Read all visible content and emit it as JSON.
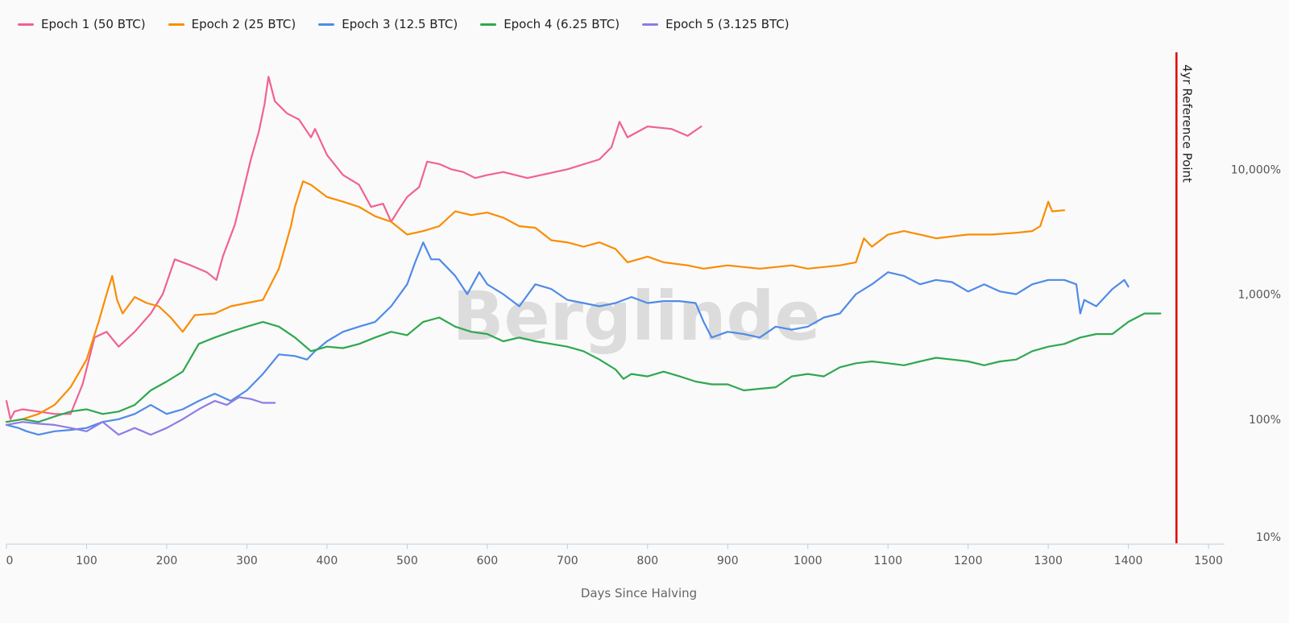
{
  "watermark": "Berglinde",
  "chart_data": {
    "type": "line",
    "xlabel": "Days Since Halving",
    "ylabel": "",
    "yscale": "log",
    "xlim": [
      0,
      1520
    ],
    "ylim": [
      10,
      100000
    ],
    "x_ticks": [
      0,
      100,
      200,
      300,
      400,
      500,
      600,
      700,
      800,
      900,
      1000,
      1100,
      1200,
      1300,
      1400,
      1500
    ],
    "x_tick_labels": [
      "0",
      "100",
      "200",
      "300",
      "400",
      "500",
      "600",
      "700",
      "800",
      "900",
      "1000",
      "1100",
      "1200",
      "1300",
      "1400",
      "1500"
    ],
    "y_ticks": [
      10,
      100,
      1000,
      10000
    ],
    "y_tick_labels": [
      "10%",
      "100%",
      "1,000%",
      "10,000%"
    ],
    "y_axis_side": "right",
    "grid": false,
    "legend_position": "top-left",
    "reference_line": {
      "x": 1460,
      "label": "4yr Reference Point",
      "color": "#e00000"
    },
    "series": [
      {
        "name": "Epoch 1 (50 BTC)",
        "color": "#f06292",
        "x": [
          0,
          5,
          10,
          20,
          40,
          60,
          80,
          95,
          110,
          125,
          140,
          160,
          180,
          195,
          210,
          230,
          250,
          262,
          270,
          285,
          295,
          305,
          315,
          322,
          327,
          335,
          350,
          365,
          380,
          385,
          400,
          420,
          440,
          455,
          470,
          480,
          490,
          500,
          515,
          525,
          540,
          555,
          570,
          585,
          600,
          620,
          650,
          700,
          740,
          755,
          765,
          775,
          800,
          830,
          850,
          867
        ],
        "y": [
          140,
          100,
          115,
          120,
          115,
          110,
          110,
          190,
          450,
          500,
          380,
          500,
          700,
          1000,
          1900,
          1700,
          1500,
          1300,
          2000,
          3600,
          6500,
          12000,
          20000,
          33000,
          55000,
          35000,
          28000,
          25000,
          18000,
          21000,
          13000,
          9000,
          7500,
          5000,
          5300,
          3800,
          4800,
          6000,
          7200,
          11500,
          11000,
          10000,
          9500,
          8500,
          9000,
          9500,
          8500,
          10000,
          12000,
          15000,
          24000,
          18000,
          22000,
          21000,
          18500,
          22000
        ]
      },
      {
        "name": "Epoch 2 (25 BTC)",
        "color": "#fb8c00",
        "x": [
          0,
          20,
          40,
          60,
          80,
          100,
          115,
          125,
          132,
          138,
          145,
          160,
          175,
          190,
          205,
          220,
          235,
          260,
          280,
          300,
          320,
          340,
          355,
          360,
          370,
          380,
          400,
          420,
          440,
          460,
          480,
          500,
          520,
          540,
          560,
          580,
          600,
          620,
          640,
          660,
          680,
          700,
          720,
          740,
          760,
          775,
          800,
          820,
          850,
          870,
          900,
          940,
          980,
          1000,
          1040,
          1060,
          1070,
          1080,
          1100,
          1120,
          1140,
          1160,
          1180,
          1200,
          1230,
          1260,
          1280,
          1290,
          1300,
          1305,
          1320
        ],
        "y": [
          95,
          100,
          110,
          130,
          180,
          300,
          600,
          1000,
          1400,
          900,
          700,
          950,
          850,
          800,
          650,
          500,
          680,
          700,
          800,
          850,
          900,
          1600,
          3500,
          5000,
          8000,
          7500,
          6000,
          5500,
          5000,
          4200,
          3800,
          3000,
          3200,
          3500,
          4600,
          4300,
          4500,
          4100,
          3500,
          3400,
          2700,
          2600,
          2400,
          2600,
          2300,
          1800,
          2000,
          1800,
          1700,
          1600,
          1700,
          1600,
          1700,
          1600,
          1700,
          1800,
          2800,
          2400,
          3000,
          3200,
          3000,
          2800,
          2900,
          3000,
          3000,
          3100,
          3200,
          3500,
          5500,
          4600,
          4700
        ]
      },
      {
        "name": "Epoch 3 (12.5 BTC)",
        "color": "#4f8be8",
        "x": [
          0,
          15,
          25,
          40,
          60,
          80,
          100,
          120,
          140,
          160,
          180,
          200,
          220,
          240,
          260,
          280,
          300,
          320,
          340,
          360,
          375,
          385,
          400,
          420,
          440,
          460,
          480,
          500,
          510,
          520,
          530,
          540,
          560,
          575,
          590,
          600,
          620,
          640,
          660,
          680,
          700,
          720,
          740,
          760,
          780,
          800,
          820,
          840,
          860,
          870,
          880,
          900,
          920,
          940,
          960,
          980,
          1000,
          1020,
          1040,
          1060,
          1080,
          1100,
          1120,
          1140,
          1160,
          1180,
          1200,
          1220,
          1240,
          1260,
          1280,
          1300,
          1320,
          1335,
          1340,
          1345,
          1360,
          1380,
          1395,
          1400
        ],
        "y": [
          90,
          85,
          80,
          75,
          80,
          82,
          85,
          95,
          100,
          110,
          130,
          110,
          120,
          140,
          160,
          140,
          170,
          230,
          330,
          320,
          300,
          350,
          420,
          500,
          550,
          600,
          800,
          1200,
          1800,
          2600,
          1900,
          1900,
          1400,
          1000,
          1500,
          1200,
          1000,
          800,
          1200,
          1100,
          900,
          850,
          800,
          850,
          950,
          850,
          880,
          880,
          850,
          600,
          450,
          500,
          480,
          450,
          550,
          520,
          550,
          650,
          700,
          1000,
          1200,
          1500,
          1400,
          1200,
          1300,
          1250,
          1050,
          1200,
          1050,
          1000,
          1200,
          1300,
          1300,
          1200,
          700,
          900,
          800,
          1100,
          1300,
          1150
        ]
      },
      {
        "name": "Epoch 4 (6.25 BTC)",
        "color": "#2fa84f",
        "x": [
          0,
          20,
          40,
          60,
          80,
          100,
          120,
          140,
          160,
          180,
          200,
          220,
          240,
          260,
          280,
          300,
          320,
          340,
          360,
          380,
          400,
          420,
          440,
          460,
          480,
          500,
          520,
          540,
          560,
          580,
          600,
          620,
          640,
          660,
          680,
          700,
          720,
          740,
          760,
          770,
          780,
          800,
          820,
          840,
          860,
          880,
          900,
          920,
          940,
          960,
          980,
          1000,
          1020,
          1040,
          1060,
          1080,
          1100,
          1120,
          1140,
          1160,
          1180,
          1200,
          1220,
          1240,
          1260,
          1280,
          1300,
          1320,
          1340,
          1360,
          1380,
          1400,
          1420,
          1440
        ],
        "y": [
          95,
          100,
          95,
          105,
          115,
          120,
          110,
          115,
          130,
          170,
          200,
          240,
          400,
          450,
          500,
          550,
          600,
          550,
          450,
          350,
          380,
          370,
          400,
          450,
          500,
          470,
          600,
          650,
          550,
          500,
          480,
          420,
          450,
          420,
          400,
          380,
          350,
          300,
          250,
          210,
          230,
          220,
          240,
          220,
          200,
          190,
          190,
          170,
          175,
          180,
          220,
          230,
          220,
          260,
          280,
          290,
          280,
          270,
          290,
          310,
          300,
          290,
          270,
          290,
          300,
          350,
          380,
          400,
          450,
          480,
          480,
          600,
          700,
          700
        ]
      },
      {
        "name": "Epoch 5 (3.125 BTC)",
        "color": "#8f7be6",
        "x": [
          0,
          20,
          40,
          60,
          80,
          100,
          120,
          140,
          160,
          170,
          180,
          200,
          220,
          240,
          250,
          260,
          275,
          290,
          305,
          320,
          335
        ],
        "y": [
          90,
          95,
          92,
          90,
          85,
          80,
          95,
          75,
          85,
          80,
          75,
          85,
          100,
          120,
          130,
          140,
          130,
          150,
          145,
          135,
          135
        ]
      }
    ]
  }
}
